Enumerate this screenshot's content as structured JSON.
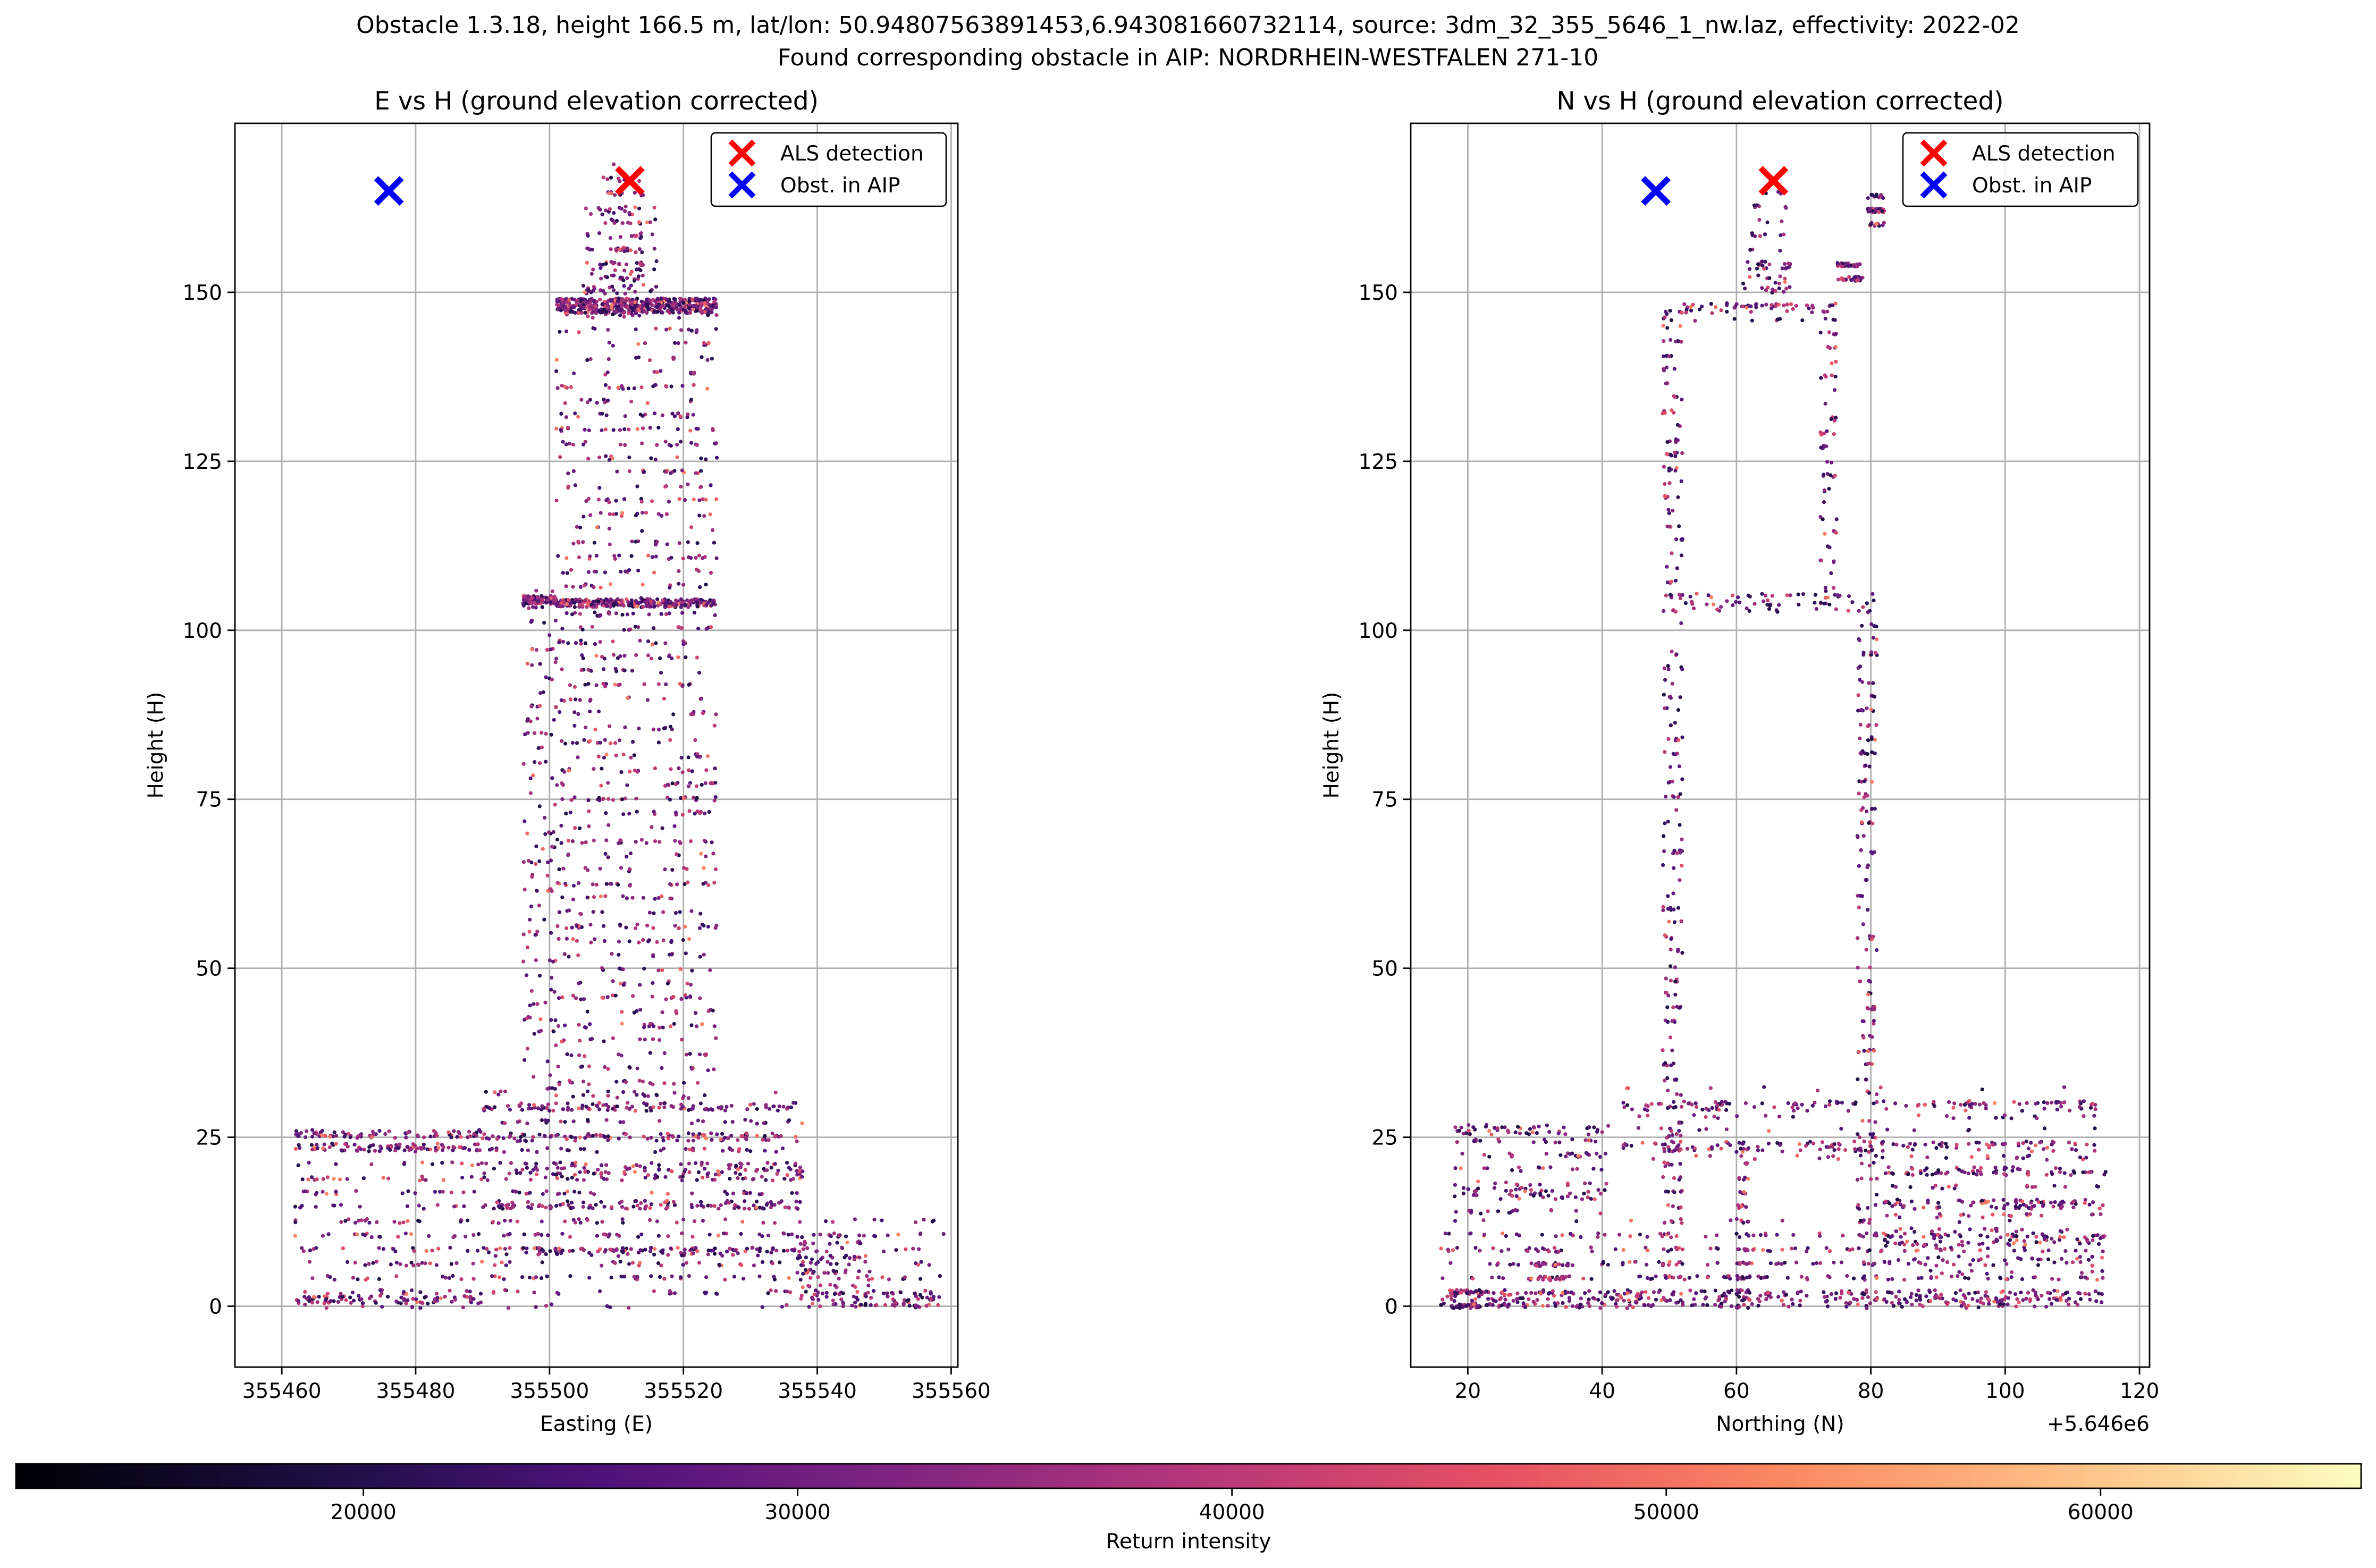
{
  "figure": {
    "title_line1": "Obstacle 1.3.18, height 166.5 m, lat/lon: 50.94807563891453,6.943081660732114, source: 3dm_32_355_5646_1_nw.laz, effectivity: 2022-02",
    "title_line2": "Found corresponding obstacle in AIP: NORDRHEIN-WESTFALEN 271-10"
  },
  "chart_data": [
    {
      "type": "scatter",
      "title": "E vs H (ground elevation corrected)",
      "xlabel": "Easting (E)",
      "ylabel": "Height (H)",
      "xlim": [
        355453,
        355561
      ],
      "ylim": [
        -9,
        175
      ],
      "xticks": [
        355460,
        355480,
        355500,
        355520,
        355540,
        355560
      ],
      "yticks": [
        0,
        25,
        50,
        75,
        100,
        125,
        150
      ],
      "grid": true,
      "legend": {
        "placement": "top-right",
        "entries": [
          {
            "label": "ALS detection",
            "marker": "x",
            "color": "#ff0000"
          },
          {
            "label": "Obst. in AIP",
            "marker": "x",
            "color": "#0000ff"
          }
        ]
      },
      "markers": [
        {
          "name": "ALS detection",
          "x": 355512,
          "y": 166.5,
          "color": "#ff0000"
        },
        {
          "name": "Obst. in AIP",
          "x": 355476,
          "y": 165,
          "color": "#0000ff"
        }
      ],
      "point_cloud_regions": [
        {
          "x": [
            355462,
            355490
          ],
          "y": [
            0,
            26
          ],
          "layers": [
            23.5,
            25.5,
            1
          ]
        },
        {
          "x": [
            355490,
            355538
          ],
          "y": [
            0,
            31
          ],
          "layers": [
            29.5,
            25,
            20,
            15,
            8
          ]
        },
        {
          "x": [
            355501,
            355525
          ],
          "y": [
            31,
            148
          ],
          "layers": [
            104,
            147.5,
            148.5
          ]
        },
        {
          "x": [
            355496,
            355501
          ],
          "y": [
            30,
            106
          ],
          "layers": [
            104.5
          ]
        },
        {
          "x": [
            355505,
            355516
          ],
          "y": [
            148,
            163
          ],
          "layers": [
            150.5,
            153,
            162
          ]
        },
        {
          "x": [
            355508,
            355514
          ],
          "y": [
            152,
            168
          ],
          "layers": []
        },
        {
          "x": [
            355537,
            355559
          ],
          "y": [
            0,
            12
          ],
          "layers": [
            0.5,
            1.5
          ]
        },
        {
          "x": [
            355537,
            355548
          ],
          "y": [
            3,
            10
          ],
          "layers": []
        }
      ]
    },
    {
      "type": "scatter",
      "title": "N vs H (ground elevation corrected)",
      "xlabel": "Northing (N)",
      "ylabel": "Height (H)",
      "x_offset_label": "+5.646e6",
      "xlim": [
        11.5,
        121.5
      ],
      "ylim": [
        -9,
        175
      ],
      "xticks": [
        20,
        40,
        60,
        80,
        100,
        120
      ],
      "yticks": [
        0,
        25,
        50,
        75,
        100,
        125,
        150
      ],
      "grid": true,
      "legend": {
        "placement": "top-right",
        "entries": [
          {
            "label": "ALS detection",
            "marker": "x",
            "color": "#ff0000"
          },
          {
            "label": "Obst. in AIP",
            "marker": "x",
            "color": "#0000ff"
          }
        ]
      },
      "markers": [
        {
          "name": "ALS detection",
          "x": 65.5,
          "y": 166.5,
          "color": "#ff0000"
        },
        {
          "name": "Obst. in AIP",
          "x": 48,
          "y": 165,
          "color": "#0000ff"
        }
      ],
      "point_cloud_regions": [
        {
          "x": [
            49,
            52
          ],
          "y": [
            0,
            148
          ],
          "layers": []
        },
        {
          "x": [
            78,
            81
          ],
          "y": [
            0,
            104
          ],
          "layers": []
        },
        {
          "x": [
            72.5,
            75
          ],
          "y": [
            104,
            147
          ],
          "layers": []
        },
        {
          "x": [
            49,
            76
          ],
          "y": [
            146,
            149
          ],
          "layers": [
            147.5
          ]
        },
        {
          "x": [
            52,
            81
          ],
          "y": [
            103,
            105.5
          ],
          "layers": [
            104
          ]
        },
        {
          "x": [
            43,
            115
          ],
          "y": [
            28,
            31.5
          ],
          "layers": [
            29.5
          ]
        },
        {
          "x": [
            43,
            115
          ],
          "y": [
            22,
            26
          ],
          "layers": [
            23.5
          ]
        },
        {
          "x": [
            16,
            115
          ],
          "y": [
            0,
            12
          ],
          "layers": [
            0.5,
            1.5
          ]
        },
        {
          "x": [
            60,
            62
          ],
          "y": [
            0,
            24
          ],
          "layers": []
        },
        {
          "x": [
            82,
            115
          ],
          "y": [
            5,
            21
          ],
          "layers": [
            20,
            15,
            10
          ]
        },
        {
          "x": [
            61,
            68
          ],
          "y": [
            148,
            165
          ],
          "layers": [
            151,
            154
          ]
        },
        {
          "x": [
            75,
            79
          ],
          "y": [
            152,
            154
          ],
          "layers": []
        },
        {
          "x": [
            79.5,
            82
          ],
          "y": [
            160,
            164
          ],
          "layers": []
        },
        {
          "x": [
            17,
            22
          ],
          "y": [
            0,
            3
          ],
          "layers": []
        },
        {
          "x": [
            30,
            35
          ],
          "y": [
            2,
            8
          ],
          "layers": []
        },
        {
          "x": [
            18,
            41
          ],
          "y": [
            14,
            27
          ],
          "layers": [
            26,
            17
          ]
        }
      ]
    }
  ],
  "colorbar": {
    "label": "Return intensity",
    "colormap": "magma",
    "range": [
      12000,
      66000
    ],
    "ticks": [
      20000,
      30000,
      40000,
      50000,
      60000
    ]
  }
}
